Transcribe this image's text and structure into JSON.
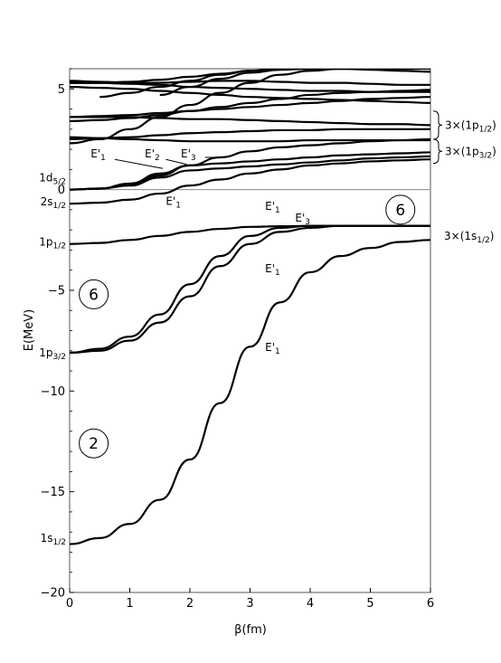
{
  "chart_data": {
    "type": "line",
    "title": "",
    "xlabel": "β(fm)",
    "ylabel": "E(MeV)",
    "xlim": [
      0,
      6
    ],
    "ylim": [
      -20,
      6
    ],
    "x_ticks": [
      0,
      1,
      2,
      3,
      4,
      5,
      6
    ],
    "y_ticks": [
      5,
      0,
      -5,
      -10,
      -15,
      -20
    ],
    "grid": false,
    "zero_line": true,
    "level_labels": [
      {
        "id": "d52",
        "base": "1d",
        "sub": "5/2",
        "y": 0.6
      },
      {
        "id": "s12b",
        "base": "2s",
        "sub": "1/2",
        "y": -0.6
      },
      {
        "id": "p12",
        "base": "1p",
        "sub": "1/2",
        "y": -2.6
      },
      {
        "id": "p32",
        "base": "1p",
        "sub": "3/2",
        "y": -8.1
      },
      {
        "id": "s12",
        "base": "1s",
        "sub": "1/2",
        "y": -17.3
      }
    ],
    "group_labels": [
      {
        "id": "g1",
        "text": "3×(1p",
        "sub": "1/2",
        "close": ")",
        "y_top": 3.9,
        "y_bot": 2.5
      },
      {
        "id": "g2",
        "text": "3×(1p",
        "sub": "3/2",
        "close": ")",
        "y_top": 2.5,
        "y_bot": 1.3
      },
      {
        "id": "g3",
        "text": "3×(1s",
        "sub": "1/2",
        "close": ")",
        "y": -2.3
      }
    ],
    "annotations": [
      {
        "id": "a1",
        "text": "E'",
        "sub": "1",
        "x": 1.6,
        "y": -0.75
      },
      {
        "id": "a2",
        "text": "E'",
        "sub": "1",
        "x": 3.25,
        "y": -1.0
      },
      {
        "id": "a3",
        "text": "E'",
        "sub": "3",
        "x": 3.75,
        "y": -1.6
      },
      {
        "id": "a4",
        "text": "E'",
        "sub": "1",
        "x": 3.25,
        "y": -4.1
      },
      {
        "id": "a5",
        "text": "E'",
        "sub": "1",
        "x": 3.25,
        "y": -8.0
      },
      {
        "id": "a6",
        "text": "E'",
        "sub": "1",
        "x": 0.35,
        "y": 1.6
      },
      {
        "id": "a7",
        "text": "E'",
        "sub": "2",
        "x": 1.25,
        "y": 1.6
      },
      {
        "id": "a8",
        "text": "E'",
        "sub": "3",
        "x": 1.85,
        "y": 1.6
      }
    ],
    "circles": [
      {
        "id": "c1",
        "text": "6",
        "x": 5.5,
        "y": -1.0
      },
      {
        "id": "c2",
        "text": "6",
        "x": 0.4,
        "y": -5.2
      },
      {
        "id": "c3",
        "text": "2",
        "x": 0.4,
        "y": -12.6
      }
    ],
    "series": [
      {
        "x": [
          0,
          0.5,
          1,
          1.5,
          2,
          2.5,
          3,
          3.5,
          4,
          4.5,
          5,
          5.5,
          6
        ],
        "y": [
          -17.6,
          -17.3,
          -16.6,
          -15.4,
          -13.4,
          -10.6,
          -7.8,
          -5.6,
          -4.1,
          -3.3,
          -2.9,
          -2.6,
          -2.5
        ]
      },
      {
        "x": [
          0,
          0.5,
          1,
          1.5,
          2,
          2.5,
          3,
          3.5,
          4,
          4.5,
          5,
          5.5,
          6
        ],
        "y": [
          -8.1,
          -7.9,
          -7.3,
          -6.2,
          -4.7,
          -3.3,
          -2.3,
          -1.9,
          -1.8,
          -1.8,
          -1.8,
          -1.8,
          -1.8
        ]
      },
      {
        "x": [
          0,
          0.5,
          1,
          1.5,
          2,
          2.5,
          3,
          3.5,
          4,
          4.5,
          5,
          5.5,
          6
        ],
        "y": [
          -8.1,
          -8.0,
          -7.5,
          -6.6,
          -5.3,
          -3.8,
          -2.7,
          -2.1,
          -1.9,
          -1.8,
          -1.8,
          -1.8,
          -1.8
        ]
      },
      {
        "x": [
          0,
          0.5,
          1,
          1.5,
          2,
          2.5,
          3,
          3.5,
          4,
          4.5,
          5,
          5.5,
          6
        ],
        "y": [
          -2.7,
          -2.65,
          -2.5,
          -2.3,
          -2.1,
          -1.95,
          -1.85,
          -1.82,
          -1.8,
          -1.8,
          -1.8,
          -1.8,
          -1.8
        ]
      },
      {
        "x": [
          0,
          0.5,
          1,
          1.5,
          2,
          2.5,
          3,
          3.5,
          4,
          4.5,
          5,
          5.5,
          6
        ],
        "y": [
          -0.7,
          -0.65,
          -0.5,
          -0.2,
          0.2,
          0.5,
          0.8,
          1.0,
          1.2,
          1.3,
          1.4,
          1.45,
          1.5
        ]
      },
      {
        "x": [
          0,
          0.5,
          1,
          1.5,
          2,
          2.5,
          3,
          3.5,
          4,
          4.5,
          5,
          5.5,
          6
        ],
        "y": [
          0,
          0.05,
          0.25,
          0.7,
          1.2,
          1.6,
          1.9,
          2.1,
          2.2,
          2.3,
          2.4,
          2.45,
          2.5
        ]
      },
      {
        "x": [
          0,
          0.5,
          1,
          1.5,
          2,
          2.5,
          3,
          3.5,
          4,
          4.5,
          5,
          5.5,
          6
        ],
        "y": [
          0,
          0.05,
          0.3,
          0.8,
          1.2,
          1.3,
          1.4,
          1.5,
          1.6,
          1.7,
          1.75,
          1.8,
          1.85
        ]
      },
      {
        "x": [
          0,
          0.5,
          1,
          1.5,
          2,
          2.5,
          3,
          3.5,
          4,
          4.5,
          5,
          5.5,
          6
        ],
        "y": [
          0,
          0.05,
          0.2,
          0.6,
          0.95,
          1.05,
          1.15,
          1.25,
          1.35,
          1.45,
          1.55,
          1.6,
          1.65
        ]
      },
      {
        "x": [
          0,
          0.5,
          1,
          1.5,
          2,
          2.5,
          3,
          3.5,
          4,
          4.5,
          5,
          5.5,
          6
        ],
        "y": [
          2.5,
          2.55,
          2.6,
          2.7,
          2.8,
          2.85,
          2.9,
          2.95,
          2.95,
          3.0,
          3.0,
          3.0,
          3.0
        ]
      },
      {
        "x": [
          0,
          0.5,
          1,
          1.5,
          2,
          2.5,
          3,
          3.5,
          4,
          4.5,
          5,
          5.5,
          6
        ],
        "y": [
          2.6,
          2.55,
          2.5,
          2.45,
          2.4,
          2.4,
          2.4,
          2.4,
          2.45,
          2.45,
          2.45,
          2.45,
          2.45
        ]
      },
      {
        "x": [
          0,
          0.5,
          1,
          1.5,
          2,
          2.5,
          3,
          3.5,
          4,
          4.5,
          5,
          5.5,
          6
        ],
        "y": [
          3.6,
          3.6,
          3.6,
          3.55,
          3.5,
          3.5,
          3.45,
          3.4,
          3.35,
          3.3,
          3.25,
          3.25,
          3.2
        ]
      },
      {
        "x": [
          0,
          0.5,
          1,
          1.5,
          2,
          2.5,
          3,
          3.5,
          4,
          4.5,
          5,
          5.5,
          6
        ],
        "y": [
          3.6,
          3.65,
          3.7,
          3.8,
          3.9,
          4.0,
          4.1,
          4.2,
          4.3,
          4.4,
          4.5,
          4.55,
          4.6
        ]
      },
      {
        "x": [
          0,
          0.5,
          1,
          1.5,
          2,
          2.5,
          3,
          3.5,
          4,
          4.5,
          5,
          5.5,
          6
        ],
        "y": [
          5.1,
          5.05,
          5.0,
          4.9,
          4.8,
          4.7,
          4.6,
          4.55,
          4.5,
          4.45,
          4.4,
          4.35,
          4.3
        ]
      },
      {
        "x": [
          0,
          0.5,
          1,
          1.5,
          2,
          2.5,
          3,
          3.5,
          4,
          4.5,
          5,
          5.5,
          6
        ],
        "y": [
          5.3,
          5.3,
          5.25,
          5.2,
          5.1,
          5.05,
          5.0,
          4.95,
          4.9,
          4.9,
          4.85,
          4.85,
          4.85
        ]
      },
      {
        "x": [
          0,
          0.5,
          1,
          1.5,
          2,
          2.5,
          3,
          3.5,
          4,
          4.5,
          5,
          5.5,
          6
        ],
        "y": [
          5.4,
          5.35,
          5.3,
          5.3,
          5.35,
          5.4,
          5.4,
          5.35,
          5.3,
          5.3,
          5.25,
          5.2,
          5.2
        ]
      },
      {
        "x": [
          0,
          0.5,
          1,
          1.5,
          2,
          2.5,
          3,
          3.5,
          4,
          4.5,
          5,
          5.5,
          6
        ],
        "y": [
          5.3,
          5.3,
          5.35,
          5.45,
          5.6,
          5.75,
          5.9,
          6.0,
          6.0,
          6.0,
          6.0,
          6.0,
          6.0
        ]
      },
      {
        "x": [
          0,
          0.5,
          1,
          1.5,
          2,
          2.5,
          3,
          3.5,
          4,
          4.5,
          5,
          5.5,
          6
        ],
        "y": [
          3.4,
          3.45,
          3.55,
          3.7,
          3.9,
          4.1,
          4.3,
          4.5,
          4.7,
          4.8,
          4.85,
          4.9,
          4.95
        ]
      },
      {
        "x": [
          0,
          0.5,
          1,
          1.5,
          2,
          2.5,
          3,
          3.5,
          4,
          4.5,
          5
        ],
        "y": [
          2.3,
          2.5,
          3.0,
          3.6,
          4.2,
          4.8,
          5.3,
          5.7,
          5.9,
          6.0,
          6.0
        ]
      },
      {
        "x": [
          0.5,
          1,
          1.5,
          2,
          2.5,
          3,
          3.5,
          4,
          4.5,
          5,
          5.5,
          6
        ],
        "y": [
          4.6,
          4.8,
          5.1,
          5.4,
          5.7,
          5.9,
          6.0,
          6.0,
          6.0,
          5.95,
          5.9,
          5.85
        ]
      },
      {
        "x": [
          1.5,
          2,
          2.5,
          3,
          3.5,
          4,
          4.5,
          4.8
        ],
        "y": [
          4.7,
          5.1,
          5.5,
          5.8,
          5.95,
          6.0,
          6.0,
          6.0
        ]
      }
    ]
  }
}
